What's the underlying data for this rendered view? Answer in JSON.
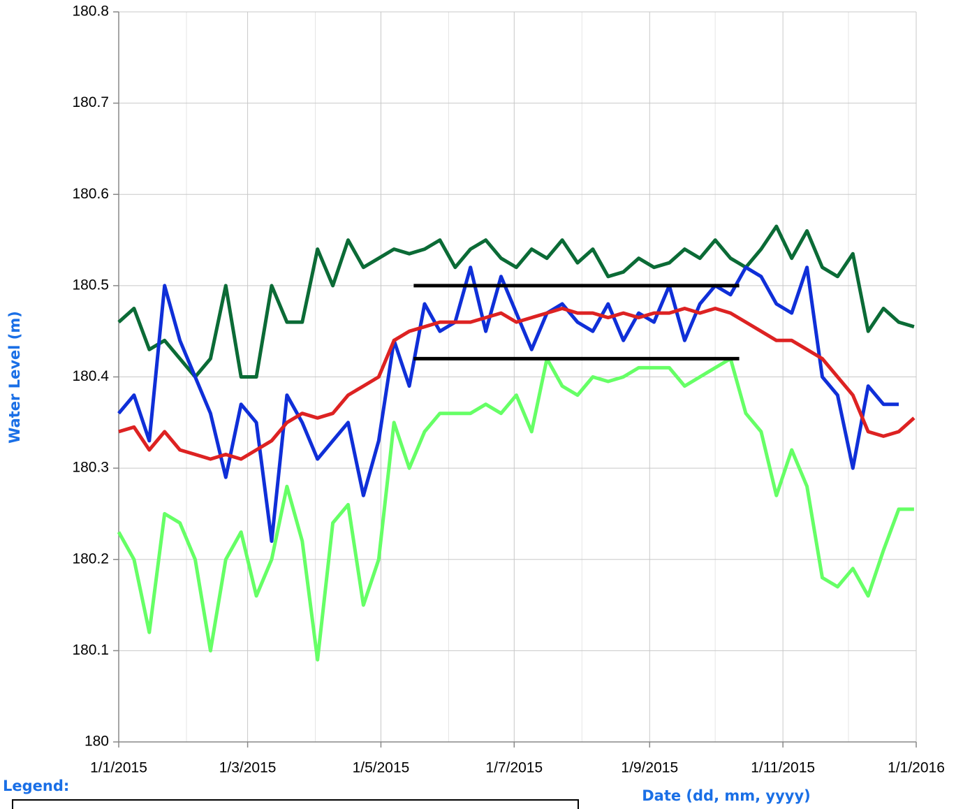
{
  "chart_data": {
    "type": "line",
    "ylabel": "Water Level (m)",
    "xlabel": "Date (dd, mm, yyyy)",
    "legend_title": "Legend:",
    "xlim": [
      "1/1/2015",
      "1/1/2016"
    ],
    "xticks": [
      "1/1/2015",
      "1/3/2015",
      "1/5/2015",
      "1/7/2015",
      "1/9/2015",
      "1/11/2015",
      "1/1/2016"
    ],
    "xgrid": [
      "1/2/2015",
      "1/4/2015",
      "1/6/2015",
      "1/8/2015",
      "1/10/2015",
      "1/12/2015"
    ],
    "ylim": [
      180,
      180.8
    ],
    "yticks": [
      180,
      180.1,
      180.2,
      180.3,
      180.4,
      180.5,
      180.6,
      180.7,
      180.8
    ],
    "grid": true,
    "x": [
      "1/1/2015",
      "8/1/2015",
      "15/1/2015",
      "22/1/2015",
      "29/1/2015",
      "5/2/2015",
      "12/2/2015",
      "19/2/2015",
      "26/2/2015",
      "5/3/2015",
      "12/3/2015",
      "19/3/2015",
      "26/3/2015",
      "2/4/2015",
      "9/4/2015",
      "16/4/2015",
      "23/4/2015",
      "30/4/2015",
      "7/5/2015",
      "14/5/2015",
      "21/5/2015",
      "28/5/2015",
      "4/6/2015",
      "11/6/2015",
      "18/6/2015",
      "25/6/2015",
      "2/7/2015",
      "9/7/2015",
      "16/7/2015",
      "23/7/2015",
      "30/7/2015",
      "6/8/2015",
      "13/8/2015",
      "20/8/2015",
      "27/8/2015",
      "3/9/2015",
      "10/9/2015",
      "17/9/2015",
      "24/9/2015",
      "1/10/2015",
      "8/10/2015",
      "15/10/2015",
      "22/10/2015",
      "29/10/2015",
      "5/11/2015",
      "12/11/2015",
      "19/11/2015",
      "26/11/2015",
      "3/12/2015",
      "10/12/2015",
      "17/12/2015",
      "24/12/2015",
      "31/12/2015"
    ],
    "series": [
      {
        "color": "#0b6b36",
        "values": [
          180.46,
          180.475,
          180.43,
          180.44,
          180.42,
          180.4,
          180.42,
          180.5,
          180.4,
          180.4,
          180.5,
          180.46,
          180.46,
          180.54,
          180.5,
          180.55,
          180.52,
          180.53,
          180.54,
          180.535,
          180.54,
          180.55,
          180.52,
          180.54,
          180.55,
          180.53,
          180.52,
          180.54,
          180.53,
          180.55,
          180.525,
          180.54,
          180.51,
          180.515,
          180.53,
          180.52,
          180.525,
          180.54,
          180.53,
          180.55,
          180.53,
          180.52,
          180.54,
          180.565,
          180.53,
          180.56,
          180.52,
          180.51,
          180.535,
          180.45,
          180.475,
          180.46,
          180.455
        ]
      },
      {
        "color": "#66ff66",
        "values": [
          180.23,
          180.2,
          180.12,
          180.25,
          180.24,
          180.2,
          180.1,
          180.2,
          180.23,
          180.16,
          180.2,
          180.28,
          180.22,
          180.09,
          180.24,
          180.26,
          180.15,
          180.2,
          180.35,
          180.3,
          180.34,
          180.36,
          180.36,
          180.36,
          180.37,
          180.36,
          180.38,
          180.34,
          180.42,
          180.39,
          180.38,
          180.4,
          180.395,
          180.4,
          180.41,
          180.41,
          180.41,
          180.39,
          180.4,
          180.41,
          180.42,
          180.36,
          180.34,
          180.27,
          180.32,
          180.28,
          180.18,
          180.17,
          180.19,
          180.16,
          180.21,
          180.255,
          180.255
        ]
      },
      {
        "color": "#0f2fd8",
        "values": [
          180.36,
          180.38,
          180.33,
          180.5,
          180.44,
          180.4,
          180.36,
          180.29,
          180.37,
          180.35,
          180.22,
          180.38,
          180.35,
          180.31,
          180.33,
          180.35,
          180.27,
          180.33,
          180.44,
          180.39,
          180.48,
          180.45,
          180.46,
          180.52,
          180.45,
          180.51,
          180.47,
          180.43,
          180.47,
          180.48,
          180.46,
          180.45,
          180.48,
          180.44,
          180.47,
          180.46,
          180.5,
          180.44,
          180.48,
          180.5,
          180.49,
          180.52,
          180.51,
          180.48,
          180.47,
          180.52,
          180.4,
          180.38,
          180.3,
          180.39,
          180.37,
          180.37,
          null
        ]
      },
      {
        "color": "#dd2222",
        "values": [
          180.34,
          180.345,
          180.32,
          180.34,
          180.32,
          180.315,
          180.31,
          180.315,
          180.31,
          180.32,
          180.33,
          180.35,
          180.36,
          180.355,
          180.36,
          180.38,
          180.39,
          180.4,
          180.44,
          180.45,
          180.455,
          180.46,
          180.46,
          180.46,
          180.465,
          180.47,
          180.46,
          180.465,
          180.47,
          180.475,
          180.47,
          180.47,
          180.465,
          180.47,
          180.465,
          180.47,
          180.47,
          180.475,
          180.47,
          180.475,
          180.47,
          180.46,
          180.45,
          180.44,
          180.44,
          180.43,
          180.42,
          180.4,
          180.38,
          180.34,
          180.335,
          180.34,
          180.355
        ]
      }
    ],
    "hlines": [
      {
        "y": 180.5,
        "x": [
          "16/5/2015",
          "12/10/2015"
        ],
        "color": "#000000"
      },
      {
        "y": 180.42,
        "x": [
          "16/5/2015",
          "12/10/2015"
        ],
        "color": "#000000"
      }
    ]
  }
}
